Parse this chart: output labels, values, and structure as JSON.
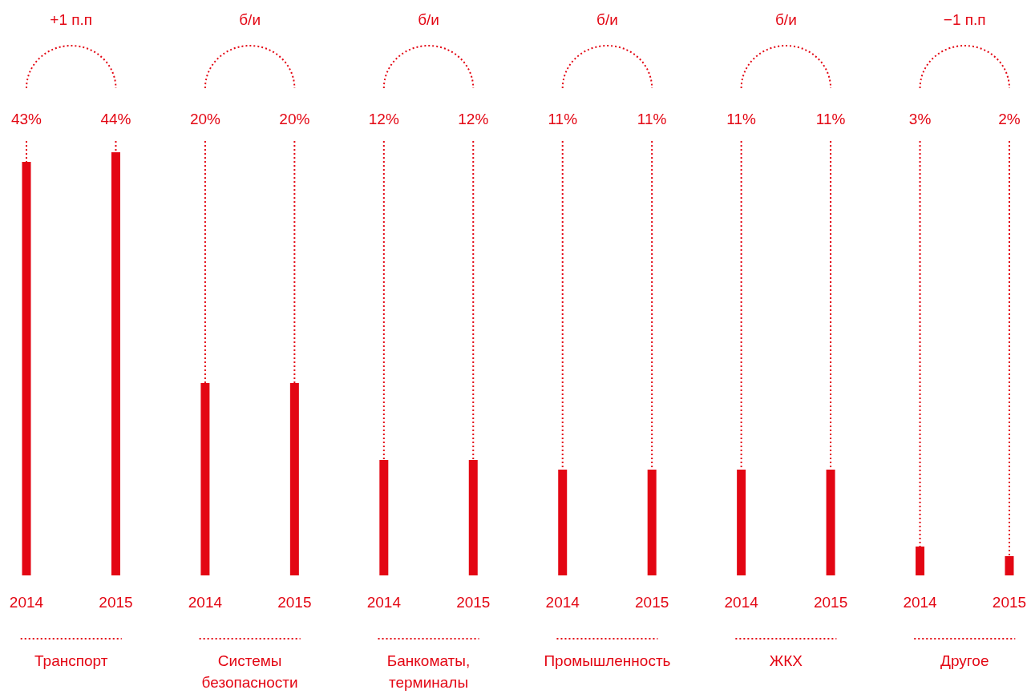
{
  "chart_data": {
    "type": "bar",
    "categories": [
      "2014",
      "2015",
      "2014",
      "2015",
      "2014",
      "2015",
      "2014",
      "2015",
      "2014",
      "2015",
      "2014",
      "2015"
    ],
    "values": [
      43,
      44,
      20,
      20,
      12,
      12,
      11,
      11,
      11,
      11,
      3,
      2
    ],
    "color": "#e30613",
    "data_labels": true,
    "grid": "x",
    "value_labels": [
      "43%",
      "44%",
      "20%",
      "20%",
      "12%",
      "12%",
      "11%",
      "11%",
      "11%",
      "11%",
      "3%",
      "2%"
    ],
    "annotations": [
      "+1 п.п",
      "б/и",
      "б/и",
      "б/и",
      "б/и",
      "−1 п.п",
      "Транспорт",
      "Системы безопасности",
      "Банкоматы, терминалы",
      "Промышленность",
      "ЖКХ",
      "Другое"
    ]
  }
}
